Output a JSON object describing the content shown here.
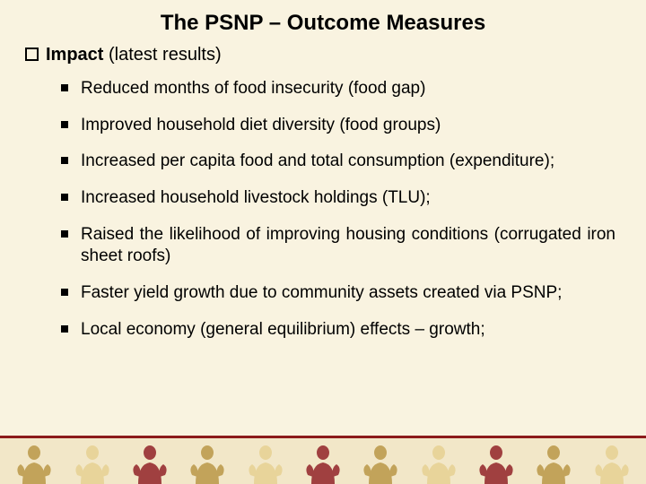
{
  "slide": {
    "title": "The PSNP – Outcome Measures",
    "level1": {
      "bold": "Impact",
      "rest": " (latest results)"
    },
    "bullets": [
      {
        "text": "Reduced months of food insecurity (food gap)",
        "justify": false
      },
      {
        "text": "Improved household diet diversity (food groups)",
        "justify": false
      },
      {
        "text": "Increased per capita food and total consumption (expenditure);",
        "justify": true
      },
      {
        "text": "Increased household livestock holdings (TLU);",
        "justify": false
      },
      {
        "text": "Raised the likelihood of improving housing conditions (corrugated iron sheet roofs)",
        "justify": true
      },
      {
        "text": "Faster yield growth due to community assets created via PSNP;",
        "justify": true
      },
      {
        "text": "Local economy (general equilibrium) effects – growth;",
        "justify": false
      }
    ]
  },
  "style": {
    "background": "#f9f3e0",
    "title_fontsize": 24,
    "level1_fontsize": 20,
    "level2_fontsize": 19,
    "text_color": "#000000",
    "footer_line_color": "#8c1b1b",
    "footer_band_color": "#f2e7c8",
    "figure_dark": "#c2a35a",
    "figure_light": "#e8d49a",
    "figure_red": "#a04040",
    "figure_count": 11
  }
}
